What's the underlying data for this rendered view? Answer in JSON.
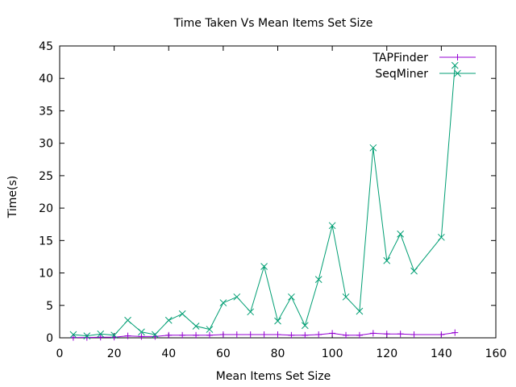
{
  "chart_data": {
    "type": "line",
    "title": "Time Taken Vs Mean Items Set Size",
    "xlabel": "Mean Items Set Size",
    "ylabel": "Time(s)",
    "xlim": [
      0,
      160
    ],
    "ylim": [
      0,
      45
    ],
    "xticks": [
      "0",
      "20",
      "40",
      "60",
      "80",
      "100",
      "120",
      "140",
      "160"
    ],
    "yticks": [
      "0",
      "5",
      "10",
      "15",
      "20",
      "25",
      "30",
      "35",
      "40",
      "45"
    ],
    "grid": false,
    "legend_position": "top-right",
    "series": [
      {
        "name": "TAPFinder",
        "color": "#9400d3",
        "marker": "plus",
        "x": [
          5,
          10,
          15,
          20,
          25,
          30,
          35,
          40,
          45,
          50,
          55,
          60,
          65,
          70,
          75,
          80,
          85,
          90,
          95,
          100,
          105,
          110,
          115,
          120,
          125,
          130,
          140,
          145
        ],
        "y": [
          0.05,
          0.05,
          0.1,
          0.1,
          0.3,
          0.2,
          0.2,
          0.4,
          0.4,
          0.4,
          0.4,
          0.5,
          0.5,
          0.5,
          0.5,
          0.5,
          0.4,
          0.4,
          0.5,
          0.7,
          0.4,
          0.4,
          0.7,
          0.6,
          0.6,
          0.5,
          0.5,
          0.8
        ]
      },
      {
        "name": "SeqMiner",
        "color": "#009e73",
        "marker": "cross",
        "x": [
          5,
          10,
          15,
          20,
          25,
          30,
          35,
          40,
          45,
          50,
          55,
          60,
          65,
          70,
          75,
          80,
          85,
          90,
          95,
          100,
          105,
          110,
          115,
          120,
          125,
          130,
          140,
          145
        ],
        "y": [
          0.5,
          0.3,
          0.6,
          0.4,
          2.7,
          0.9,
          0.5,
          2.7,
          3.7,
          1.8,
          1.3,
          5.4,
          6.3,
          4.0,
          11.0,
          2.6,
          6.3,
          1.9,
          9.0,
          17.3,
          6.3,
          4.1,
          29.3,
          11.9,
          16.0,
          10.3,
          15.5,
          42.0
        ]
      }
    ]
  }
}
